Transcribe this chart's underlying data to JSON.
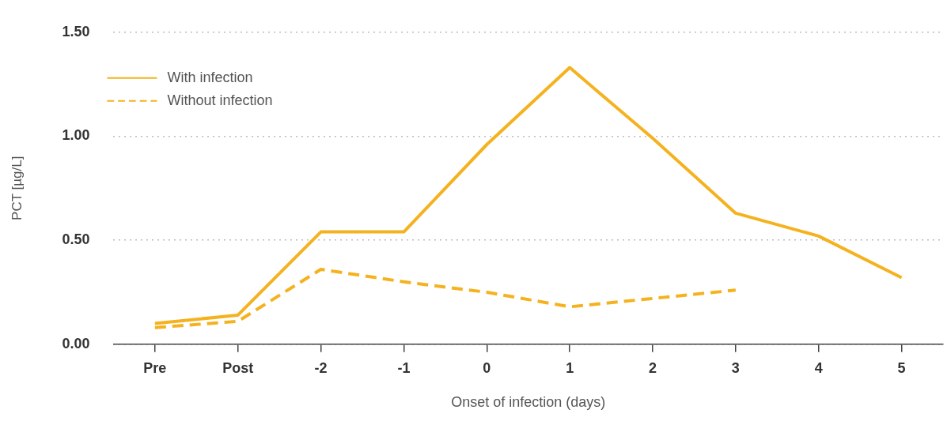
{
  "chart_data": {
    "type": "line",
    "xlabel": "Onset of infection (days)",
    "ylabel": "PCT [µg/L]",
    "categories": [
      "Pre",
      "Post",
      "-2",
      "-1",
      "0",
      "1",
      "2",
      "3",
      "4",
      "5"
    ],
    "series": [
      {
        "name": "With infection",
        "color": "#f5b21f",
        "values": [
          0.1,
          0.14,
          0.54,
          0.54,
          0.96,
          1.33,
          0.99,
          0.63,
          0.52,
          0.32
        ]
      },
      {
        "name": "Without infection",
        "color": "#f5b21f",
        "line_style": "dashed",
        "values": [
          0.08,
          0.11,
          0.36,
          0.3,
          0.25,
          0.18,
          0.22,
          0.26,
          null,
          null
        ]
      }
    ],
    "ylim": [
      0,
      1.5
    ],
    "yticks": [
      {
        "value": 0,
        "label": "0.00"
      },
      {
        "value": 0.5,
        "label": "0.50"
      },
      {
        "value": 1,
        "label": "1.00"
      },
      {
        "value": 1.5,
        "label": "1.50"
      }
    ],
    "grid": "y",
    "legend": "top left",
    "marker": "none"
  }
}
